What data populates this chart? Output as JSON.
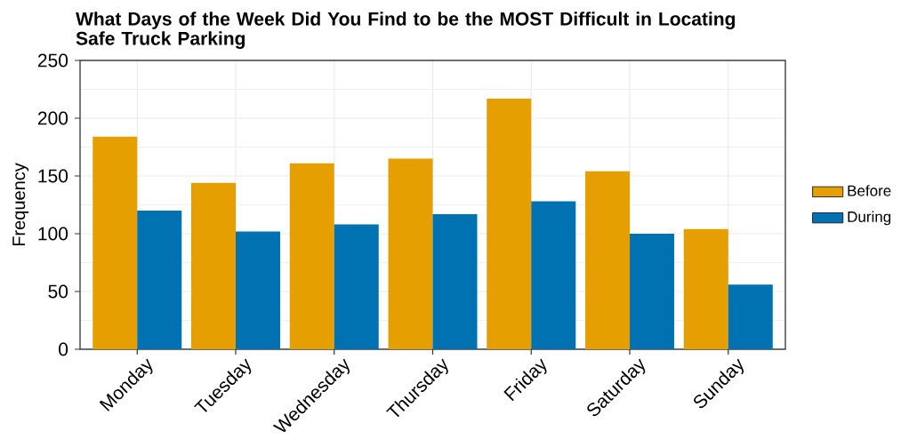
{
  "chart_data": {
    "type": "bar",
    "title": "What Days of the Week Did You Find to be the MOST Difficult in Locating Safe Truck Parking",
    "ylabel": "Frequency",
    "categories": [
      "Monday",
      "Tuesday",
      "Wednesday",
      "Thursday",
      "Friday",
      "Saturday",
      "Sunday"
    ],
    "series": [
      {
        "name": "Before",
        "color": "#e69f00",
        "values": [
          184,
          144,
          161,
          165,
          217,
          154,
          104
        ]
      },
      {
        "name": "During",
        "color": "#0072b2",
        "values": [
          120,
          102,
          108,
          117,
          128,
          100,
          56
        ]
      }
    ],
    "ylim": [
      0,
      250
    ],
    "yticks": [
      0,
      50,
      100,
      150,
      200,
      250
    ],
    "grid": true,
    "legend": "right"
  }
}
